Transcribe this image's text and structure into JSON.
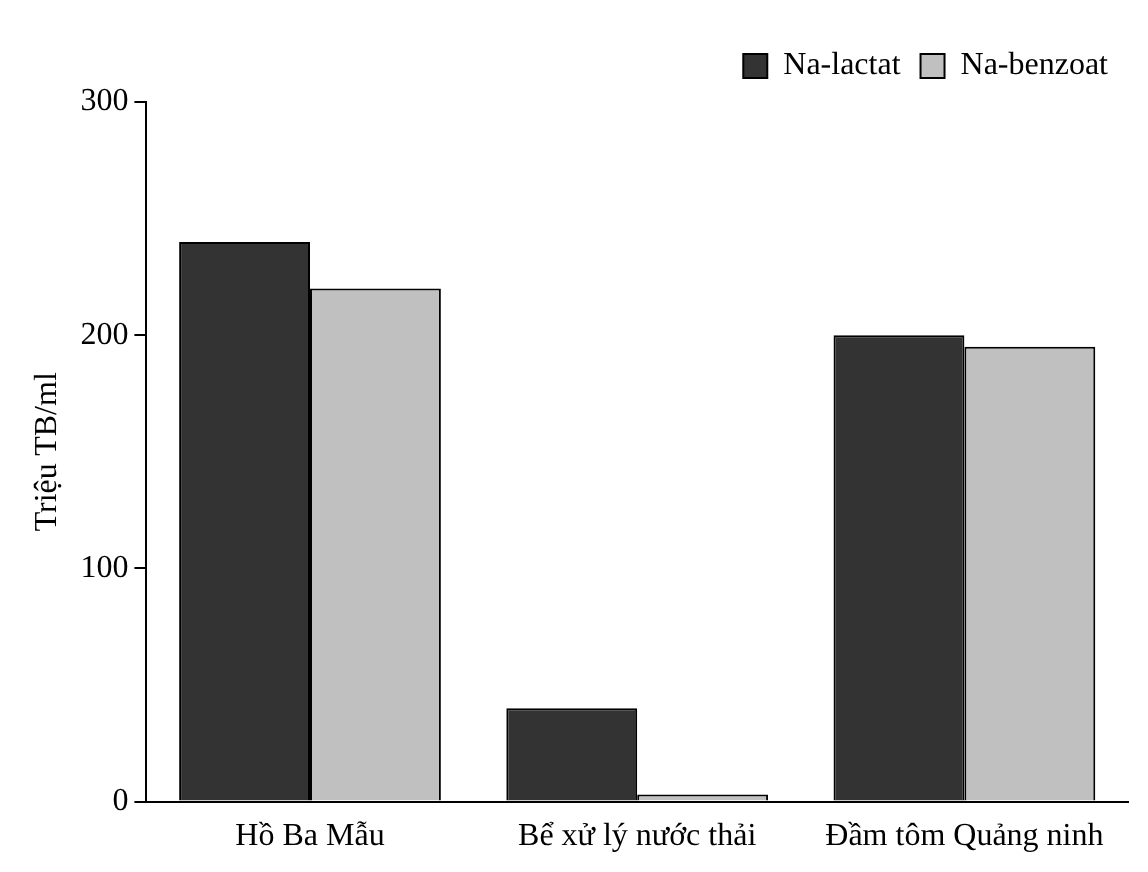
{
  "chart_data": {
    "type": "bar",
    "ylabel": "Triệu TB/ml",
    "categories": [
      "Hồ Ba Mẫu",
      "Bể xử lý nước thải",
      "Đầm tôm Quảng ninh"
    ],
    "series": [
      {
        "name": "Na-lactat",
        "color": "#333333",
        "values": [
          240,
          40,
          200
        ]
      },
      {
        "name": "Na-benzoat",
        "color": "#c0c0c0",
        "values": [
          220,
          3,
          195
        ]
      }
    ],
    "ylim": [
      0,
      300
    ],
    "yticks": [
      0,
      100,
      200,
      300
    ],
    "grid": false,
    "legend": "top right"
  }
}
